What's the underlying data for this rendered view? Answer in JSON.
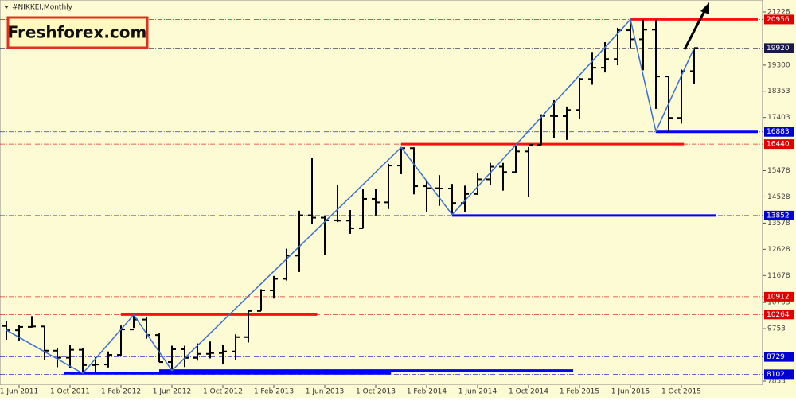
{
  "chart_data": {
    "type": "ohlc",
    "title": "#NIKKEI,Monthly",
    "watermark": "Freshforex.com",
    "categories": [
      null,
      "1 Jun 2011",
      null,
      null,
      null,
      "1 Oct 2011",
      null,
      null,
      null,
      "1 Feb 2012",
      null,
      null,
      null,
      "1 Jun 2012",
      null,
      null,
      null,
      "1 Oct 2012",
      null,
      null,
      null,
      "1 Feb 2013",
      null,
      null,
      null,
      "1 Jun 2013",
      null,
      null,
      null,
      "1 Oct 2013",
      null,
      null,
      null,
      "1 Feb 2014",
      null,
      null,
      null,
      "1 Jun 2014",
      null,
      null,
      null,
      "1 Oct 2014",
      null,
      null,
      null,
      "1 Feb 2015",
      null,
      null,
      null,
      "1 Jun 2015",
      null,
      null,
      null,
      "1 Oct 2015",
      null
    ],
    "open": [
      9850,
      9694,
      9816,
      9833,
      8955,
      8700,
      8988,
      8434,
      8455,
      8803,
      9723,
      10084,
      9521,
      8543,
      9007,
      8695,
      8840,
      8870,
      8928,
      9446,
      10395,
      11139,
      11559,
      12398,
      13861,
      13775,
      13677,
      13668,
      13389,
      14456,
      14328,
      15662,
      16291,
      14914,
      14841,
      14828,
      14304,
      14632,
      15162,
      15621,
      15425,
      16174,
      16414,
      17460,
      17451,
      17674,
      18798,
      19207,
      19520,
      20563,
      20236,
      20585,
      18890,
      17388,
      19083
    ],
    "high": [
      10017,
      9876,
      10207,
      9845,
      9040,
      9152,
      9050,
      8720,
      8928,
      9866,
      10255,
      10190,
      9580,
      9136,
      9135,
      9222,
      9288,
      9180,
      9546,
      10433,
      11183,
      11662,
      12650,
      14027,
      15942,
      13824,
      14953,
      14050,
      14818,
      14828,
      15727,
      16320,
      16321,
      15094,
      15312,
      14997,
      14934,
      15376,
      15759,
      15759,
      16374,
      16333,
      17520,
      18030,
      17800,
      18839,
      19778,
      20133,
      20655,
      20953,
      20947,
      20946,
      18900,
      19141,
      19921
    ],
    "low": [
      9351,
      9318,
      9789,
      8619,
      8359,
      8343,
      8135,
      8160,
      8349,
      8774,
      9779,
      9388,
      8542,
      8238,
      8365,
      8593,
      8676,
      8488,
      8619,
      9252,
      10398,
      10844,
      11497,
      11805,
      13555,
      12415,
      13614,
      13188,
      13377,
      13853,
      14086,
      15350,
      14619,
      13995,
      14203,
      13885,
      13964,
      14598,
      14964,
      14753,
      15406,
      14529,
      16400,
      16672,
      16592,
      17350,
      18592,
      19034,
      19295,
      19923,
      19115,
      17714,
      16901,
      17181,
      18617
    ],
    "close": [
      9694,
      9816,
      9833,
      8955,
      8700,
      8988,
      8434,
      8455,
      8803,
      9723,
      10084,
      9521,
      8543,
      9007,
      8695,
      8840,
      8870,
      8928,
      9446,
      10395,
      11139,
      11559,
      12398,
      13861,
      13775,
      13677,
      13668,
      13389,
      14456,
      14328,
      15662,
      16291,
      14914,
      14841,
      14828,
      14304,
      14632,
      15162,
      15621,
      15425,
      16174,
      16414,
      17460,
      17451,
      17674,
      18798,
      19207,
      19520,
      20563,
      20236,
      20585,
      18890,
      17388,
      19083,
      19920
    ],
    "zigzag": {
      "x": [
        0,
        6,
        10,
        13,
        31,
        35,
        49,
        51,
        54
      ],
      "values": [
        9700,
        8135,
        10255,
        8238,
        16320,
        13885,
        20953,
        16901,
        19920
      ],
      "color": "#3a6fd8"
    },
    "ylim": [
      7853,
      21228
    ],
    "yticks": [
      7853,
      9753,
      10703,
      11678,
      12628,
      13578,
      14528,
      15478,
      17403,
      18353,
      19300,
      21228
    ],
    "levels": [
      {
        "value": 20956,
        "color": "#e00000"
      },
      {
        "value": 19920,
        "color": "#1a1a4a"
      },
      {
        "value": 16883,
        "color": "#0000d0"
      },
      {
        "value": 16440,
        "color": "#e00000"
      },
      {
        "value": 13852,
        "color": "#0000d0"
      },
      {
        "value": 10912,
        "color": "#e00000"
      },
      {
        "value": 10264,
        "color": "#e00000"
      },
      {
        "value": 8729,
        "color": "#0000d0"
      },
      {
        "value": 8102,
        "color": "#0000d0"
      }
    ],
    "segments": [
      {
        "value": 20956,
        "from": 49,
        "to": 59,
        "color": "#ff1010"
      },
      {
        "value": 16440,
        "from": 31,
        "to": 53.2,
        "color": "#ff1010"
      },
      {
        "value": 10264,
        "from": 9,
        "to": 24.4,
        "color": "#ff1010"
      },
      {
        "value": 16883,
        "from": 51,
        "to": 59,
        "color": "#0000ff"
      },
      {
        "value": 13852,
        "from": 35,
        "to": 55.7,
        "color": "#0000ff"
      },
      {
        "value": 8238,
        "from": 12,
        "to": 44.5,
        "color": "#0000ff"
      },
      {
        "value": 8135,
        "from": 4.5,
        "to": 30.2,
        "color": "#0000ff"
      }
    ]
  }
}
